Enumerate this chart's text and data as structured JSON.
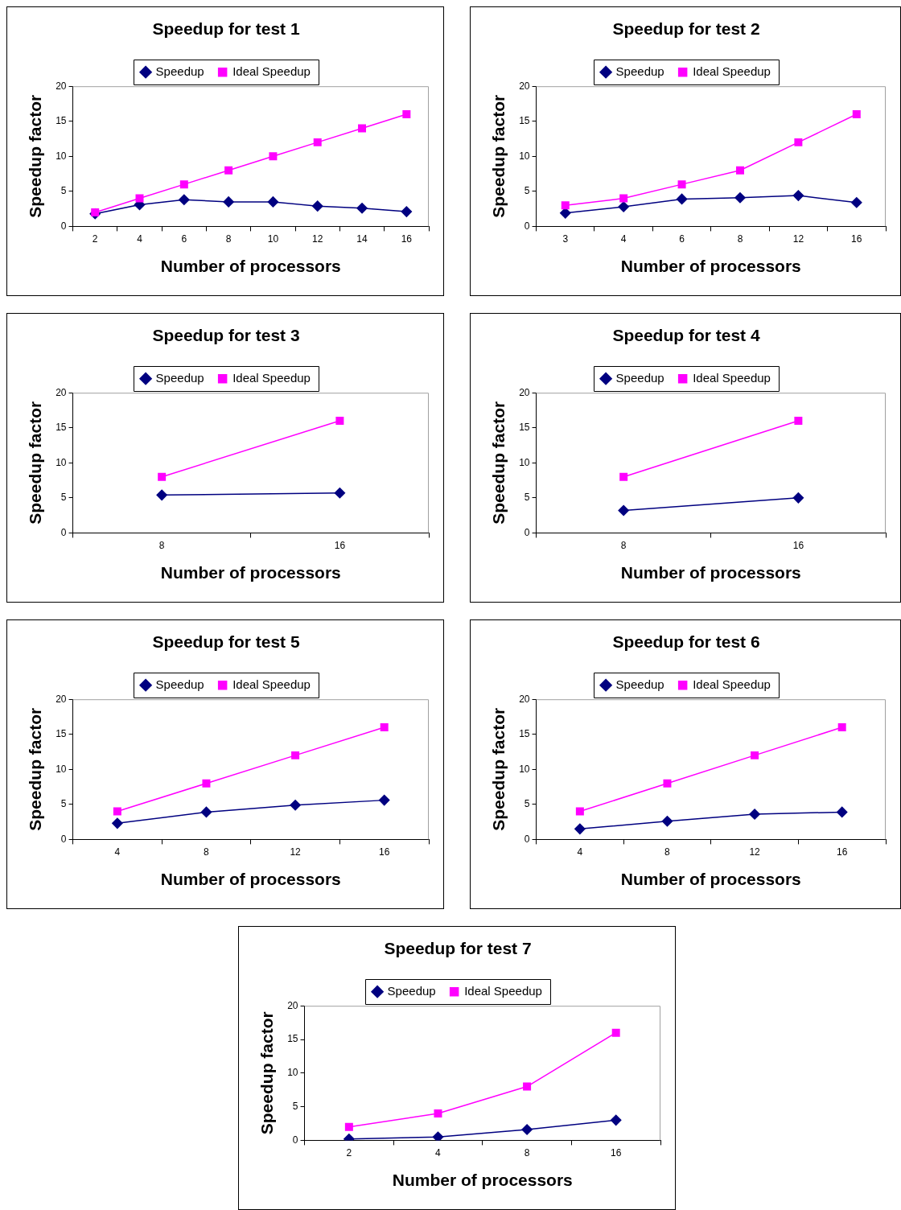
{
  "chart_data": [
    {
      "type": "line",
      "title": "Speedup for test 1",
      "xlabel": "Number of processors",
      "ylabel": "Speedup factor",
      "categories": [
        "2",
        "4",
        "6",
        "8",
        "10",
        "12",
        "14",
        "16"
      ],
      "ylim": [
        0,
        20
      ],
      "yticks": [
        0,
        5,
        10,
        15,
        20
      ],
      "legend": "top",
      "grid": false,
      "series": [
        {
          "name": "Speedup",
          "color": "#000080",
          "marker": "diamond",
          "values": [
            1.8,
            3.1,
            3.8,
            3.5,
            3.5,
            2.9,
            2.6,
            2.1
          ]
        },
        {
          "name": "Ideal Speedup",
          "color": "#ff00ff",
          "marker": "square",
          "values": [
            2,
            4,
            6,
            8,
            10,
            12,
            14,
            16
          ]
        }
      ]
    },
    {
      "type": "line",
      "title": "Speedup for test 2",
      "xlabel": "Number of processors",
      "ylabel": "Speedup factor",
      "categories": [
        "3",
        "4",
        "6",
        "8",
        "12",
        "16"
      ],
      "ylim": [
        0,
        20
      ],
      "yticks": [
        0,
        5,
        10,
        15,
        20
      ],
      "legend": "top",
      "grid": false,
      "series": [
        {
          "name": "Speedup",
          "color": "#000080",
          "marker": "diamond",
          "values": [
            1.9,
            2.8,
            3.9,
            4.1,
            4.4,
            3.4
          ]
        },
        {
          "name": "Ideal Speedup",
          "color": "#ff00ff",
          "marker": "square",
          "values": [
            3,
            4,
            6,
            8,
            12,
            16
          ]
        }
      ]
    },
    {
      "type": "line",
      "title": "Speedup for test 3",
      "xlabel": "Number of processors",
      "ylabel": "Speedup factor",
      "categories": [
        "8",
        "16"
      ],
      "ylim": [
        0,
        20
      ],
      "yticks": [
        0,
        5,
        10,
        15,
        20
      ],
      "legend": "top",
      "grid": false,
      "series": [
        {
          "name": "Speedup",
          "color": "#000080",
          "marker": "diamond",
          "values": [
            5.4,
            5.7
          ]
        },
        {
          "name": "Ideal Speedup",
          "color": "#ff00ff",
          "marker": "square",
          "values": [
            8,
            16
          ]
        }
      ]
    },
    {
      "type": "line",
      "title": "Speedup for test 4",
      "xlabel": "Number of processors",
      "ylabel": "Speedup factor",
      "categories": [
        "8",
        "16"
      ],
      "ylim": [
        0,
        20
      ],
      "yticks": [
        0,
        5,
        10,
        15,
        20
      ],
      "legend": "top",
      "grid": false,
      "series": [
        {
          "name": "Speedup",
          "color": "#000080",
          "marker": "diamond",
          "values": [
            3.2,
            5.0
          ]
        },
        {
          "name": "Ideal Speedup",
          "color": "#ff00ff",
          "marker": "square",
          "values": [
            8,
            16
          ]
        }
      ]
    },
    {
      "type": "line",
      "title": "Speedup for test 5",
      "xlabel": "Number of processors",
      "ylabel": "Speedup factor",
      "categories": [
        "4",
        "8",
        "12",
        "16"
      ],
      "ylim": [
        0,
        20
      ],
      "yticks": [
        0,
        5,
        10,
        15,
        20
      ],
      "legend": "top",
      "grid": false,
      "series": [
        {
          "name": "Speedup",
          "color": "#000080",
          "marker": "diamond",
          "values": [
            2.3,
            3.9,
            4.9,
            5.6
          ]
        },
        {
          "name": "Ideal Speedup",
          "color": "#ff00ff",
          "marker": "square",
          "values": [
            4,
            8,
            12,
            16
          ]
        }
      ]
    },
    {
      "type": "line",
      "title": "Speedup for test 6",
      "xlabel": "Number of processors",
      "ylabel": "Speedup factor",
      "categories": [
        "4",
        "8",
        "12",
        "16"
      ],
      "ylim": [
        0,
        20
      ],
      "yticks": [
        0,
        5,
        10,
        15,
        20
      ],
      "legend": "top",
      "grid": false,
      "series": [
        {
          "name": "Speedup",
          "color": "#000080",
          "marker": "diamond",
          "values": [
            1.5,
            2.6,
            3.6,
            3.9
          ]
        },
        {
          "name": "Ideal Speedup",
          "color": "#ff00ff",
          "marker": "square",
          "values": [
            4,
            8,
            12,
            16
          ]
        }
      ]
    },
    {
      "type": "line",
      "title": "Speedup for test 7",
      "xlabel": "Number of processors",
      "ylabel": "Speedup factor",
      "categories": [
        "2",
        "4",
        "8",
        "16"
      ],
      "ylim": [
        0,
        20
      ],
      "yticks": [
        0,
        5,
        10,
        15,
        20
      ],
      "legend": "top",
      "grid": false,
      "series": [
        {
          "name": "Speedup",
          "color": "#000080",
          "marker": "diamond",
          "values": [
            0.2,
            0.5,
            1.6,
            3.0
          ]
        },
        {
          "name": "Ideal Speedup",
          "color": "#ff00ff",
          "marker": "square",
          "values": [
            2,
            4,
            8,
            16
          ]
        }
      ]
    }
  ]
}
